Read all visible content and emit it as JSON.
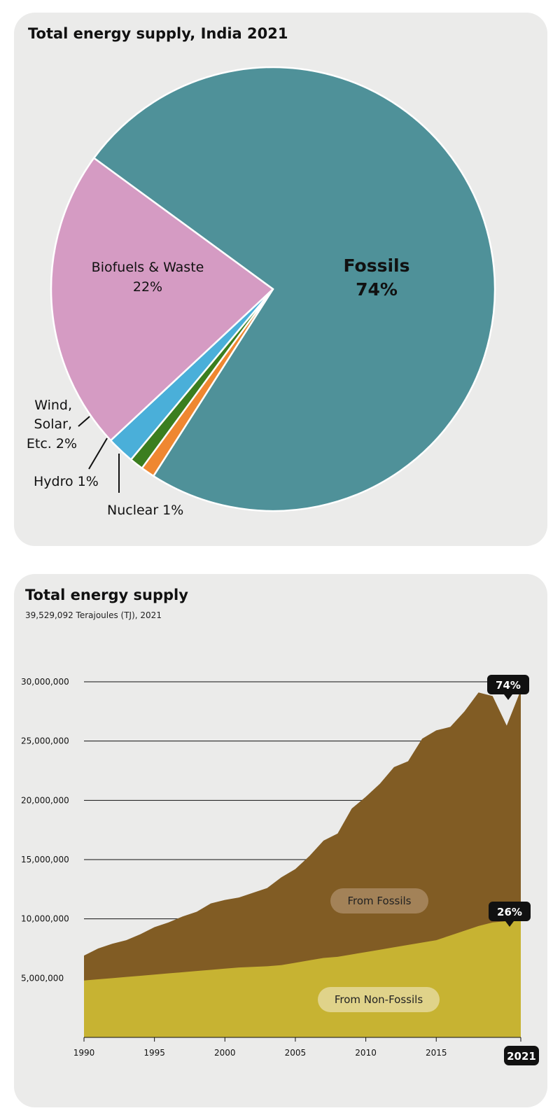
{
  "chart_data": [
    {
      "type": "pie",
      "title": "Total energy supply, India 2021",
      "slices": [
        {
          "label": "Fossils",
          "value": 74,
          "value_text": "74%",
          "color": "#4f9199"
        },
        {
          "label": "Nuclear",
          "value": 1,
          "value_text": "1%",
          "color": "#ef8731"
        },
        {
          "label": "Hydro",
          "value": 1,
          "value_text": "1%",
          "color": "#3b7e1f"
        },
        {
          "label": "Wind, Solar, Etc.",
          "value": 2,
          "value_text": "2%",
          "color": "#4aafd9"
        },
        {
          "label": "Biofuels & Waste",
          "value": 22,
          "value_text": "22%",
          "color": "#d59bc3"
        }
      ],
      "labels": {
        "fossils_name": "Fossils",
        "fossils_value": "74%",
        "biofuels_name": "Biofuels & Waste",
        "biofuels_value": "22%",
        "wind_line1": "Wind,",
        "wind_line2": "Solar,",
        "wind_line3": "Etc. 2%",
        "hydro": "Hydro 1%",
        "nuclear": "Nuclear 1%"
      }
    },
    {
      "type": "area",
      "title": "Total energy supply",
      "subtitle": "39,529,092 Terajoules (TJ), 2021",
      "x": [
        1990,
        1991,
        1992,
        1993,
        1994,
        1995,
        1996,
        1997,
        1998,
        1999,
        2000,
        2001,
        2002,
        2003,
        2004,
        2005,
        2006,
        2007,
        2008,
        2009,
        2010,
        2011,
        2012,
        2013,
        2014,
        2015,
        2016,
        2017,
        2018,
        2019,
        2020,
        2021
      ],
      "series": [
        {
          "name": "From Non-Fossils",
          "color": "#c7b332",
          "values": [
            4800000,
            4900000,
            5000000,
            5100000,
            5200000,
            5300000,
            5400000,
            5500000,
            5600000,
            5700000,
            5800000,
            5900000,
            5950000,
            6000000,
            6100000,
            6300000,
            6500000,
            6700000,
            6800000,
            7000000,
            7200000,
            7400000,
            7600000,
            7800000,
            8000000,
            8200000,
            8600000,
            9000000,
            9400000,
            9700000,
            9800000,
            10200000
          ]
        },
        {
          "name": "From Fossils",
          "color": "#815c24",
          "totals": [
            6900000,
            7500000,
            7900000,
            8200000,
            8700000,
            9300000,
            9700000,
            10200000,
            10600000,
            11300000,
            11600000,
            11800000,
            12200000,
            12600000,
            13500000,
            14200000,
            15300000,
            16600000,
            17200000,
            19300000,
            20300000,
            21400000,
            22800000,
            23300000,
            25200000,
            25900000,
            26200000,
            27500000,
            29100000,
            28800000,
            26300000,
            29300000
          ]
        }
      ],
      "end_labels": {
        "fossils": "74%",
        "non_fossils": "26%"
      },
      "yticks": [
        5000000,
        10000000,
        15000000,
        20000000,
        25000000,
        30000000
      ],
      "ytick_labels": [
        "5,000,000",
        "10,000,000",
        "15,000,000",
        "20,000,000",
        "25,000,000",
        "30,000,000"
      ],
      "xticks": [
        "1990",
        "1995",
        "2000",
        "2005",
        "2010",
        "2015"
      ],
      "last_year_badge": "2021",
      "ylim": [
        0,
        30000000
      ],
      "xlim": [
        1990,
        2021
      ],
      "grid": true
    }
  ]
}
